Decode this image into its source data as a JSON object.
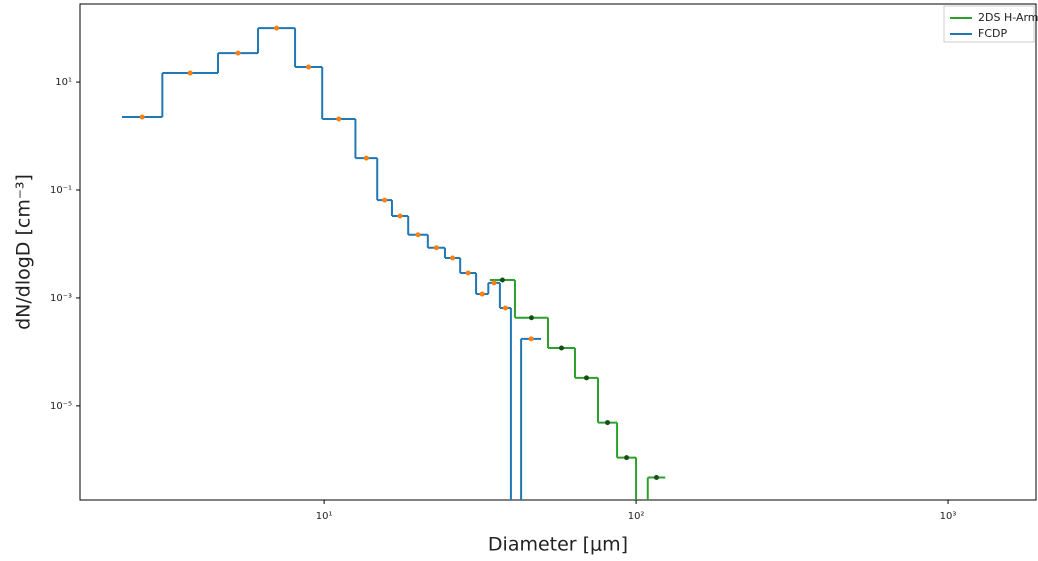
{
  "chart_data": {
    "type": "histogram",
    "xlabel": "Diameter [μm]",
    "ylabel": "dN/dlogD [cm⁻³]",
    "xscale": "log",
    "yscale": "log",
    "xlim": [
      1.65,
      1914
    ],
    "ylim": [
      1.8e-07,
      280
    ],
    "xticks": [
      {
        "value": 10,
        "label": "10¹"
      },
      {
        "value": 100,
        "label": "10²"
      },
      {
        "value": 1000,
        "label": "10³"
      }
    ],
    "yticks": [
      {
        "value": 1e-05,
        "label": "10⁻⁵"
      },
      {
        "value": 0.001,
        "label": "10⁻³"
      },
      {
        "value": 0.1,
        "label": "10⁻¹"
      },
      {
        "value": 10,
        "label": "10¹"
      }
    ],
    "legend": "upper right",
    "series": [
      {
        "name": "2DS H-Arm",
        "color": "#2ca02c",
        "marker_color": "#1a4d1a",
        "bins": [
          34.0,
          40.9,
          52.2,
          63.7,
          75.5,
          86.9,
          100,
          109,
          124
        ],
        "values": [
          0.00215,
          0.00043,
          0.000118,
          3.3e-05,
          4.9e-06,
          1.1e-06,
          null,
          4.7e-07
        ]
      },
      {
        "name": "FCDP",
        "color": "#1f77b4",
        "marker_color": "#ff7f0e",
        "bins": [
          2.25,
          3.03,
          4.57,
          6.14,
          8.07,
          9.86,
          12.6,
          14.8,
          16.5,
          18.6,
          21.5,
          24.4,
          27.3,
          30.7,
          33.6,
          36.6,
          39.7,
          42.8,
          49.6
        ],
        "values": [
          2.25,
          14.7,
          34.4,
          100,
          19,
          2.07,
          0.39,
          0.065,
          0.033,
          0.0148,
          0.0085,
          0.0055,
          0.0029,
          0.00118,
          0.0019,
          0.00065,
          null,
          0.000174
        ]
      }
    ]
  }
}
